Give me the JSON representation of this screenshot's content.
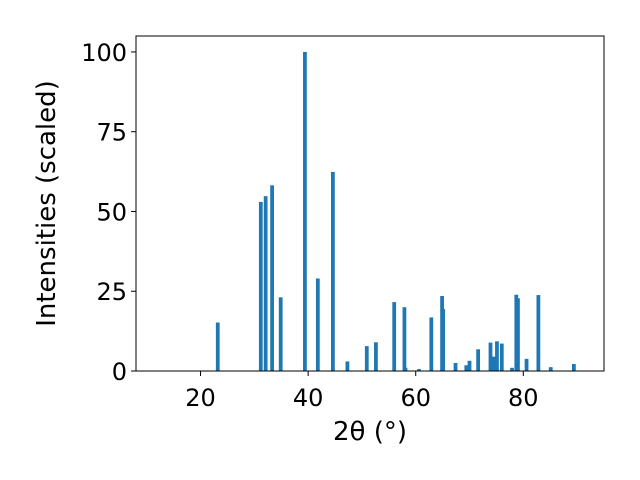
{
  "chart_data": {
    "type": "bar",
    "xlabel": "2θ (°)",
    "ylabel": "Intensities (scaled)",
    "xlim": [
      8,
      95
    ],
    "ylim": [
      0,
      105
    ],
    "xticks": [
      20,
      40,
      60,
      80
    ],
    "yticks": [
      0,
      25,
      50,
      75,
      100
    ],
    "grid": false,
    "bar_color": "#1f77b4",
    "bar_width": 0.7,
    "x": [
      23.2,
      31.2,
      32.1,
      33.3,
      34.9,
      39.4,
      41.8,
      44.6,
      47.3,
      50.9,
      52.6,
      56.0,
      57.9,
      58.1,
      60.6,
      62.9,
      64.9,
      65.1,
      67.4,
      69.4,
      70.0,
      71.6,
      73.9,
      74.5,
      75.1,
      76.0,
      77.9,
      78.7,
      79.0,
      80.6,
      82.8,
      85.1,
      89.4
    ],
    "values": [
      15.2,
      53.0,
      54.8,
      58.2,
      23.1,
      100.0,
      29.0,
      62.4,
      3.0,
      7.8,
      9.0,
      21.6,
      20.0,
      1.0,
      0.6,
      16.8,
      23.5,
      19.4,
      2.5,
      1.8,
      3.2,
      6.8,
      8.9,
      4.5,
      9.3,
      8.6,
      1.0,
      23.9,
      22.8,
      3.8,
      23.8,
      1.2,
      2.2
    ]
  }
}
